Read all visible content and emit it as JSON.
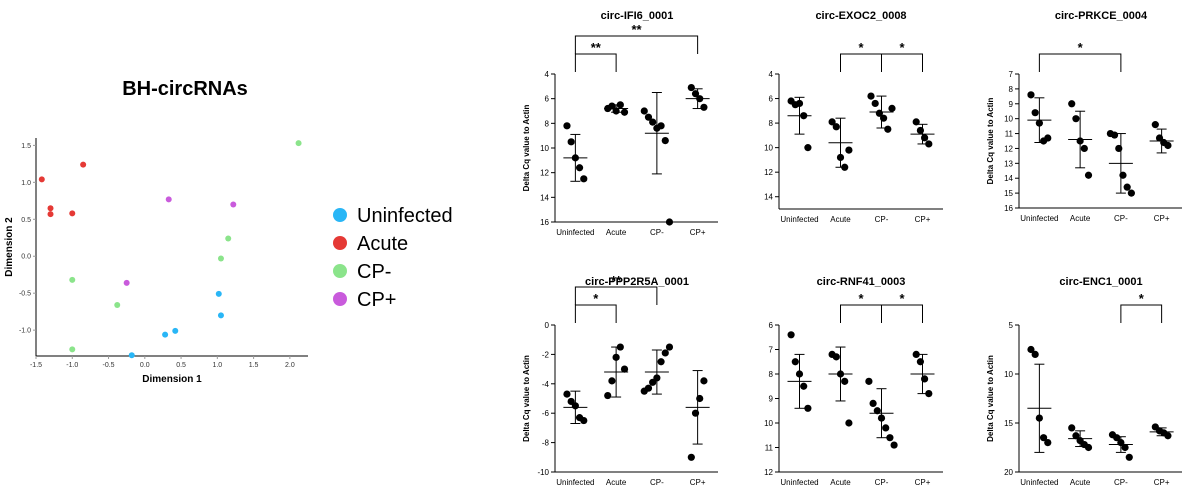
{
  "chart_data": [
    {
      "type": "scatter",
      "title": "BH-circRNAs",
      "xlabel": "Dimension 1",
      "ylabel": "Dimension 2",
      "xlim": [
        -1.5,
        2.25
      ],
      "ylim": [
        -1.35,
        1.6
      ],
      "xticks": [
        "-1.5",
        "-1.0",
        "-0.5",
        "0.0",
        "0.5",
        "1.0",
        "1.5",
        "2.0"
      ],
      "yticks": [
        "1.5",
        "1.0",
        "0.5",
        "0.0",
        "-0.5",
        "-1.0"
      ],
      "legend_position": "right",
      "series": [
        {
          "name": "Uninfected",
          "color": "#29b6f6",
          "points": [
            [
              -0.18,
              -1.34
            ],
            [
              0.28,
              -1.06
            ],
            [
              0.42,
              -1.01
            ],
            [
              1.02,
              -0.51
            ],
            [
              1.05,
              -0.8
            ]
          ]
        },
        {
          "name": "Acute",
          "color": "#e53935",
          "points": [
            [
              -1.42,
              1.04
            ],
            [
              -1.3,
              0.65
            ],
            [
              -1.3,
              0.57
            ],
            [
              -1.0,
              0.58
            ],
            [
              -0.85,
              1.24
            ]
          ]
        },
        {
          "name": "CP-",
          "color": "#8be48b",
          "points": [
            [
              -1.0,
              -0.32
            ],
            [
              -1.0,
              -1.26
            ],
            [
              -0.38,
              -0.66
            ],
            [
              1.05,
              -0.03
            ],
            [
              1.15,
              0.24
            ],
            [
              2.12,
              1.53
            ]
          ]
        },
        {
          "name": "CP+",
          "color": "#c95bdc",
          "points": [
            [
              -0.25,
              -0.36
            ],
            [
              0.33,
              0.77
            ],
            [
              1.22,
              0.7
            ]
          ]
        }
      ]
    },
    {
      "type": "scatter",
      "title": "circ-IFI6_0001",
      "ylabel": "Delta Cq value to Actin",
      "categories": [
        "Uninfected",
        "Acute",
        "CP-",
        "CP+"
      ],
      "ylim": [
        4,
        16
      ],
      "yticks": [
        "4",
        "6",
        "8",
        "10",
        "12",
        "14",
        "16"
      ],
      "y_inverted": true,
      "points": [
        [
          8.2,
          9.5,
          10.8,
          11.6,
          12.5
        ],
        [
          6.8,
          6.6,
          7.0,
          6.5,
          7.1
        ],
        [
          7.0,
          7.5,
          7.9,
          8.4,
          8.2,
          9.4,
          16.0
        ],
        [
          5.1,
          5.6,
          6.0,
          6.7
        ]
      ],
      "mean": [
        10.8,
        6.8,
        8.8,
        6.0
      ],
      "sd": [
        1.9,
        0.3,
        3.3,
        0.8
      ],
      "significance": [
        {
          "from": 0,
          "to": 1,
          "label": "**",
          "level": 0
        },
        {
          "from": 0,
          "to": 3,
          "label": "**",
          "level": 1
        }
      ]
    },
    {
      "type": "scatter",
      "title": "circ-EXOC2_0008",
      "ylabel": "",
      "categories": [
        "Uninfected",
        "Acute",
        "CP-",
        "CP+"
      ],
      "ylim": [
        4,
        15
      ],
      "yticks": [
        "4",
        "6",
        "8",
        "10",
        "12",
        "14"
      ],
      "y_inverted": true,
      "points": [
        [
          6.2,
          6.5,
          6.4,
          7.4,
          10.0
        ],
        [
          7.9,
          8.3,
          10.8,
          11.6,
          10.2
        ],
        [
          5.8,
          6.4,
          7.2,
          7.6,
          8.5,
          6.8
        ],
        [
          7.9,
          8.6,
          9.2,
          9.7
        ]
      ],
      "mean": [
        7.4,
        9.6,
        7.1,
        8.9
      ],
      "sd": [
        1.5,
        2.0,
        1.3,
        0.8
      ],
      "significance": [
        {
          "from": 1,
          "to": 2,
          "label": "*",
          "level": 0
        },
        {
          "from": 2,
          "to": 3,
          "label": "*",
          "level": 0
        }
      ]
    },
    {
      "type": "scatter",
      "title": "circ-PRKCE_0004",
      "ylabel": "Delta Cq value to Actin",
      "categories": [
        "Uninfected",
        "Acute",
        "CP-",
        "CP+"
      ],
      "ylim": [
        7,
        16
      ],
      "yticks": [
        "7",
        "8",
        "9",
        "10",
        "11",
        "12",
        "13",
        "14",
        "15",
        "16"
      ],
      "y_inverted": true,
      "points": [
        [
          8.4,
          9.6,
          10.3,
          11.5,
          11.3
        ],
        [
          9.0,
          10.0,
          11.5,
          12.0,
          13.8
        ],
        [
          11.0,
          11.1,
          12.0,
          13.8,
          14.6,
          15.0
        ],
        [
          10.4,
          11.3,
          11.6,
          11.8
        ]
      ],
      "mean": [
        10.1,
        11.4,
        13.0,
        11.5
      ],
      "sd": [
        1.5,
        1.9,
        2.0,
        0.8
      ],
      "significance": [
        {
          "from": 0,
          "to": 2,
          "label": "*",
          "level": 0
        }
      ]
    },
    {
      "type": "scatter",
      "title": "circ-PPP2R5A_0001",
      "ylabel": "Delta Cq value to Actin",
      "categories": [
        "Uninfected",
        "Acute",
        "CP-",
        "CP+"
      ],
      "ylim": [
        0,
        -10
      ],
      "yticks": [
        "-10",
        "-8",
        "-6",
        "-4",
        "-2",
        "0"
      ],
      "y_inverted": true,
      "points": [
        [
          -4.7,
          -5.2,
          -5.5,
          -6.3,
          -6.5
        ],
        [
          -4.8,
          -3.8,
          -2.2,
          -1.5,
          -3.0
        ],
        [
          -4.5,
          -4.3,
          -3.9,
          -3.6,
          -2.5,
          -1.9,
          -1.5
        ],
        [
          -9.0,
          -6.0,
          -5.0,
          -3.8
        ]
      ],
      "mean": [
        -5.6,
        -3.2,
        -3.2,
        -5.6
      ],
      "sd": [
        1.1,
        1.7,
        1.5,
        2.5
      ],
      "significance": [
        {
          "from": 0,
          "to": 1,
          "label": "*",
          "level": 0
        },
        {
          "from": 0,
          "to": 2,
          "label": "**",
          "level": 1
        }
      ]
    },
    {
      "type": "scatter",
      "title": "circ-RNF41_0003",
      "ylabel": "",
      "categories": [
        "Uninfected",
        "Acute",
        "CP-",
        "CP+"
      ],
      "ylim": [
        6,
        12
      ],
      "yticks": [
        "6",
        "7",
        "8",
        "9",
        "10",
        "11",
        "12"
      ],
      "y_inverted": true,
      "points": [
        [
          6.4,
          7.5,
          8.0,
          8.5,
          9.4
        ],
        [
          7.2,
          7.3,
          8.0,
          8.3,
          10.0
        ],
        [
          8.3,
          9.2,
          9.5,
          9.8,
          10.2,
          10.6,
          10.9
        ],
        [
          7.2,
          7.5,
          8.2,
          8.8
        ]
      ],
      "mean": [
        8.3,
        8.0,
        9.6,
        8.0
      ],
      "sd": [
        1.1,
        1.1,
        1.0,
        0.8
      ],
      "significance": [
        {
          "from": 1,
          "to": 2,
          "label": "*",
          "level": 0
        },
        {
          "from": 2,
          "to": 3,
          "label": "*",
          "level": 0
        }
      ]
    },
    {
      "type": "scatter",
      "title": "circ-ENC1_0001",
      "ylabel": "Delta Cq value to Actin",
      "categories": [
        "Uninfected",
        "Acute",
        "CP-",
        "CP+"
      ],
      "ylim": [
        5,
        20
      ],
      "yticks": [
        "5",
        "10",
        "15",
        "20"
      ],
      "y_inverted": true,
      "points": [
        [
          7.5,
          8.0,
          14.5,
          16.5,
          17.0
        ],
        [
          15.5,
          16.3,
          16.8,
          17.2,
          17.5
        ],
        [
          16.2,
          16.5,
          17.0,
          17.5,
          18.5
        ],
        [
          15.4,
          15.8,
          16.0,
          16.3
        ]
      ],
      "mean": [
        13.5,
        16.6,
        17.2,
        15.9
      ],
      "sd": [
        4.5,
        0.8,
        0.8,
        0.4
      ],
      "significance": [
        {
          "from": 2,
          "to": 3,
          "label": "*",
          "level": 0
        }
      ]
    }
  ]
}
